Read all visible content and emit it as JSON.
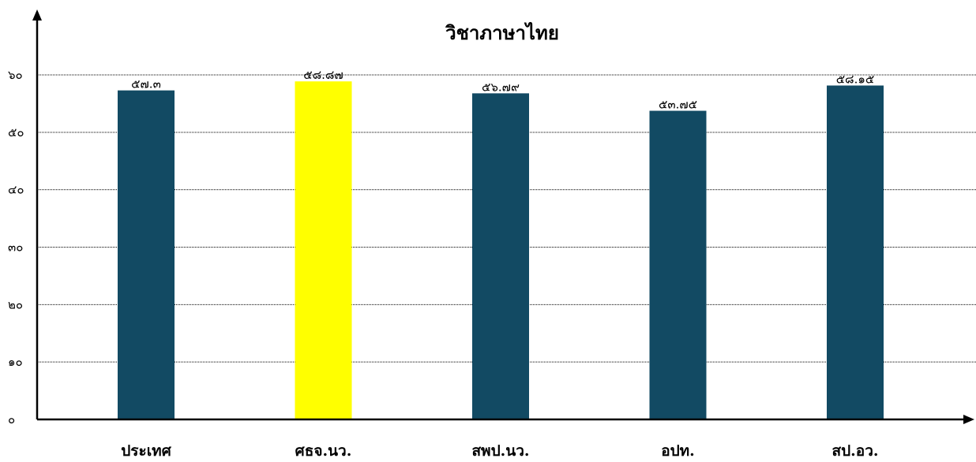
{
  "chart_data": {
    "type": "bar",
    "title": "วิชาภาษาไทย",
    "xlabel": "",
    "ylabel": "",
    "categories": [
      "ประเทศ",
      "ศธจ.นว.",
      "สพป.นว.",
      "อปท.",
      "สป.อว."
    ],
    "values": [
      57.3,
      58.87,
      56.79,
      53.75,
      58.15
    ],
    "value_labels": [
      "๕๗.๓",
      "๕๘.๘๗",
      "๕๖.๗๙",
      "๕๓.๗๕",
      "๕๘.๑๕"
    ],
    "y_ticks": [
      0,
      10,
      20,
      30,
      40,
      50,
      60
    ],
    "y_tick_labels": [
      "๐",
      "๑๐",
      "๒๐",
      "๓๐",
      "๔๐",
      "๕๐",
      "๖๐"
    ],
    "ylim": [
      0,
      60
    ],
    "grid": true,
    "legend": "none",
    "bar_colors": [
      "#124a63",
      "#ffff00",
      "#124a63",
      "#124a63",
      "#124a63"
    ]
  }
}
